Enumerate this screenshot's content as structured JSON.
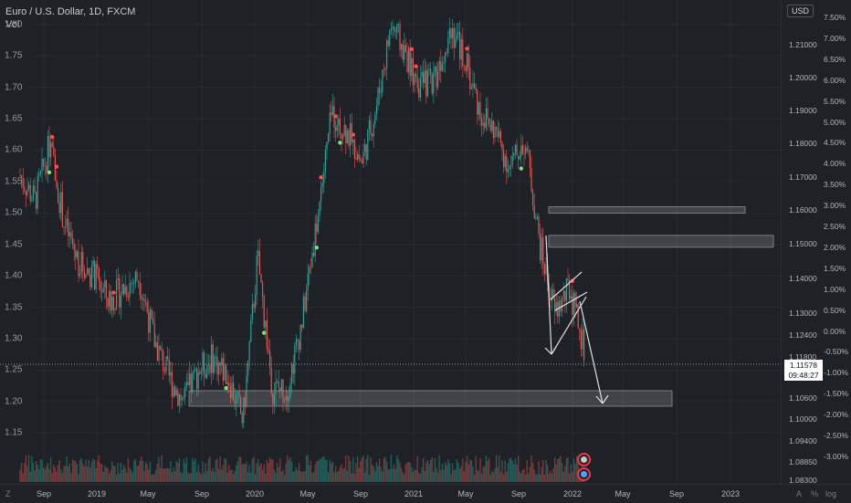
{
  "legend": {
    "symbol": "Euro / U.S. Dollar, 1D, FXCM",
    "volume_label": "Vol"
  },
  "left_axis_ticks": [
    "1.80",
    "1.75",
    "1.70",
    "1.65",
    "1.60",
    "1.55",
    "1.50",
    "1.45",
    "1.40",
    "1.35",
    "1.30",
    "1.25",
    "1.20",
    "1.15"
  ],
  "right_axis": {
    "currency": "USD",
    "price_ticks": [
      "1.21000",
      "1.20000",
      "1.19000",
      "1.18000",
      "1.17000",
      "1.16000",
      "1.15000",
      "1.14000",
      "1.13000",
      "1.12400",
      "1.11800",
      "1.10600",
      "1.10000",
      "1.09400",
      "1.08850",
      "1.08300"
    ],
    "pct_ticks": [
      "7.50%",
      "7.00%",
      "6.50%",
      "6.00%",
      "5.50%",
      "5.00%",
      "4.50%",
      "4.00%",
      "3.50%",
      "3.00%",
      "2.50%",
      "2.00%",
      "1.50%",
      "1.00%",
      "0.50%",
      "0.00%",
      "-0.50%",
      "-1.00%",
      "-1.50%",
      "-2.00%",
      "-2.50%",
      "-3.00%"
    ],
    "last_price": "1.11578",
    "countdown": "09:48:27"
  },
  "time_axis": [
    "Sep",
    "2019",
    "May",
    "Sep",
    "2020",
    "May",
    "Sep",
    "2021",
    "May",
    "Sep",
    "2022",
    "May",
    "Sep",
    "2023"
  ],
  "corner_labels": {
    "bottom_left": "Z",
    "bottom_right_a": "A",
    "bottom_right_b": "%",
    "bottom_right_c": "log"
  },
  "colors": {
    "up": "#26a69a",
    "down": "#ef5350",
    "background": "#1e2126",
    "zone": "#9aa0a6",
    "arrow": "#e0e0e0",
    "signal_green": "#7ee07e",
    "signal_red": "#ff4f4f"
  },
  "chart_data": {
    "type": "candlestick",
    "title": "Euro / U.S. Dollar, 1D, FXCM",
    "ylim": [
      1.12,
      1.82
    ],
    "series_path": [
      [
        "2018-08",
        1.56
      ],
      [
        "2018-09",
        1.52
      ],
      [
        "2018-10",
        1.61
      ],
      [
        "2018-11",
        1.48
      ],
      [
        "2018-12",
        1.42
      ],
      [
        "2019-02",
        1.4
      ],
      [
        "2019-04",
        1.36
      ],
      [
        "2019-06",
        1.38
      ],
      [
        "2019-07",
        1.4
      ],
      [
        "2019-08",
        1.3
      ],
      [
        "2019-09",
        1.24
      ],
      [
        "2019-10",
        1.2
      ],
      [
        "2019-11",
        1.25
      ],
      [
        "2019-12",
        1.27
      ],
      [
        "2020-02",
        1.24
      ],
      [
        "2020-03",
        1.17
      ],
      [
        "2020-03b",
        1.43
      ],
      [
        "2020-04",
        1.22
      ],
      [
        "2020-05",
        1.22
      ],
      [
        "2020-06",
        1.33
      ],
      [
        "2020-07",
        1.49
      ],
      [
        "2020-08",
        1.66
      ],
      [
        "2020-09",
        1.63
      ],
      [
        "2020-10",
        1.58
      ],
      [
        "2020-11",
        1.67
      ],
      [
        "2021-01",
        1.8
      ],
      [
        "2021-02",
        1.75
      ],
      [
        "2021-03",
        1.7
      ],
      [
        "2021-04",
        1.72
      ],
      [
        "2021-05",
        1.8
      ],
      [
        "2021-06",
        1.74
      ],
      [
        "2021-07",
        1.66
      ],
      [
        "2021-08",
        1.63
      ],
      [
        "2021-09",
        1.57
      ],
      [
        "2021-10",
        1.62
      ],
      [
        "2021-11",
        1.45
      ],
      [
        "2021-12",
        1.34
      ],
      [
        "2022-01",
        1.38
      ],
      [
        "2022-01b",
        1.28
      ]
    ],
    "zones": [
      {
        "label": "upper-zone-1",
        "price": 1.505
      },
      {
        "label": "upper-zone-2",
        "price": 1.455
      },
      {
        "label": "lower-zone",
        "price": 1.205
      }
    ]
  }
}
